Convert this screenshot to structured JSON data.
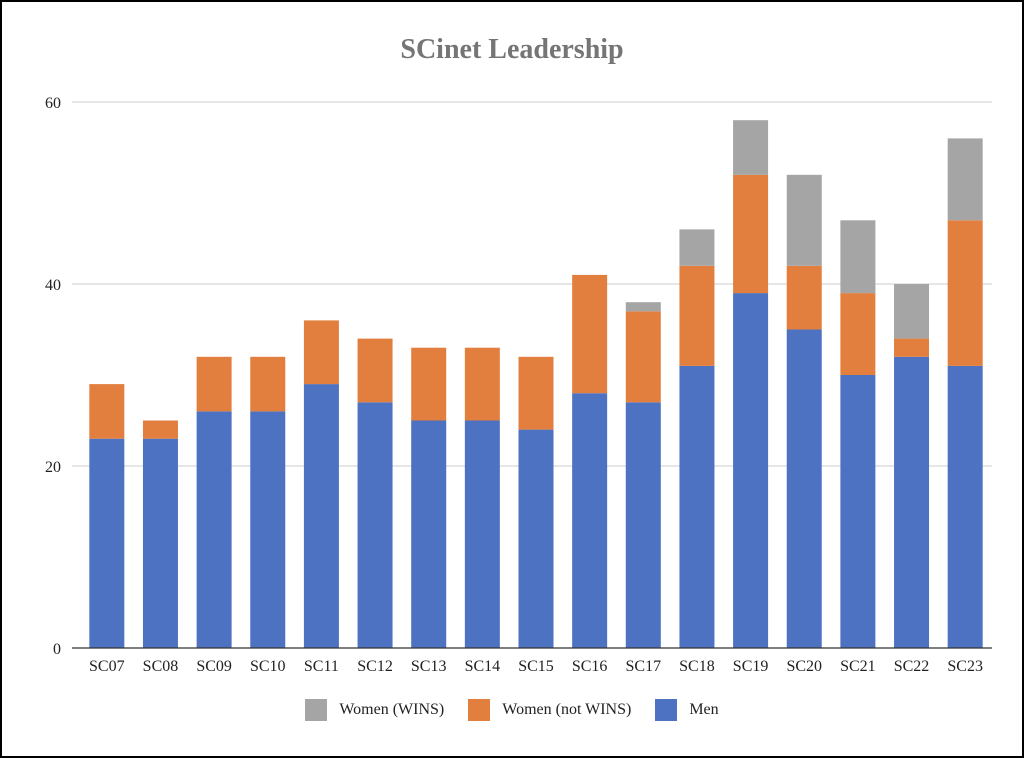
{
  "chart_data": {
    "type": "bar",
    "stacked": true,
    "title": "SCinet Leadership",
    "xlabel": "",
    "ylabel": "",
    "ylim": [
      0,
      60
    ],
    "yticks": [
      0,
      20,
      40,
      60
    ],
    "grid": true,
    "legend_position": "bottom",
    "categories": [
      "SC07",
      "SC08",
      "SC09",
      "SC10",
      "SC11",
      "SC12",
      "SC13",
      "SC14",
      "SC15",
      "SC16",
      "SC17",
      "SC18",
      "SC19",
      "SC20",
      "SC21",
      "SC22",
      "SC23"
    ],
    "series": [
      {
        "name": "Men",
        "color": "#4e72c2",
        "values": [
          23,
          23,
          26,
          26,
          29,
          27,
          25,
          25,
          24,
          28,
          27,
          31,
          39,
          35,
          30,
          32,
          31
        ]
      },
      {
        "name": "Women (not WINS)",
        "color": "#e27f3f",
        "values": [
          6,
          2,
          6,
          6,
          7,
          7,
          8,
          8,
          8,
          13,
          10,
          11,
          13,
          7,
          9,
          2,
          16
        ]
      },
      {
        "name": "Women (WINS)",
        "color": "#a5a5a5",
        "values": [
          0,
          0,
          0,
          0,
          0,
          0,
          0,
          0,
          0,
          0,
          1,
          4,
          6,
          10,
          8,
          6,
          9
        ]
      }
    ],
    "legend_order": [
      "Women (WINS)",
      "Women (not WINS)",
      "Men"
    ]
  }
}
